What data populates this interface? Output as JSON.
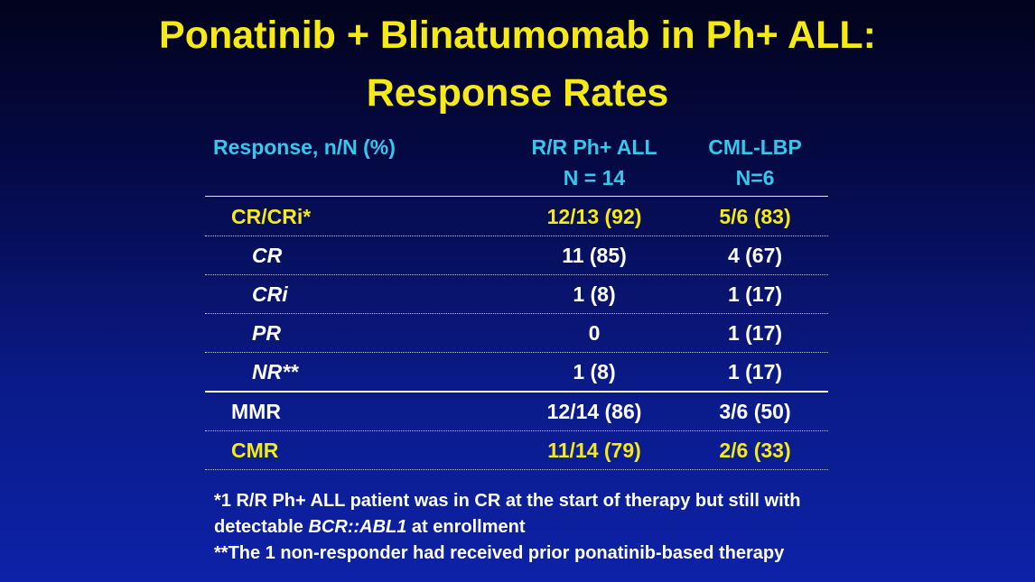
{
  "title": {
    "line1": "Ponatinib + Blinatumomab in Ph+ ALL:",
    "line2": "Response Rates"
  },
  "table": {
    "headers": {
      "col0": "Response, n/N (%)",
      "col1_line1": "R/R Ph+ ALL",
      "col1_line2": "N = 14",
      "col2_line1": "CML-LBP",
      "col2_line2": "N=6"
    },
    "rows": [
      {
        "label": "CR/CRi*",
        "rr": "12/13 (92)",
        "cml": "5/6 (83)"
      },
      {
        "label": "CR",
        "rr": "11 (85)",
        "cml": "4 (67)"
      },
      {
        "label": "CRi",
        "rr": "1 (8)",
        "cml": "1 (17)"
      },
      {
        "label": "PR",
        "rr": "0",
        "cml": "1 (17)"
      },
      {
        "label": "NR**",
        "rr": "1 (8)",
        "cml": "1 (17)"
      },
      {
        "label": "MMR",
        "rr": "12/14 (86)",
        "cml": "3/6 (50)"
      },
      {
        "label": "CMR",
        "rr": "11/14 (79)",
        "cml": "2/6 (33)"
      }
    ]
  },
  "footnotes": {
    "note1_line1": "*1 R/R Ph+ ALL patient was in CR at the start of therapy but still with",
    "note1_line2_pre": "detectable ",
    "note1_line2_gene": "BCR::ABL1",
    "note1_line2_post": " at enrollment",
    "note2": "**The 1 non-responder had received prior ponatinib-based therapy"
  },
  "colors": {
    "title": "#f5ea14",
    "header": "#33c8ec",
    "highlight": "#f5ea14",
    "text": "#ffffff",
    "background_top": "#02031c",
    "background_bottom": "#0d22a8"
  }
}
